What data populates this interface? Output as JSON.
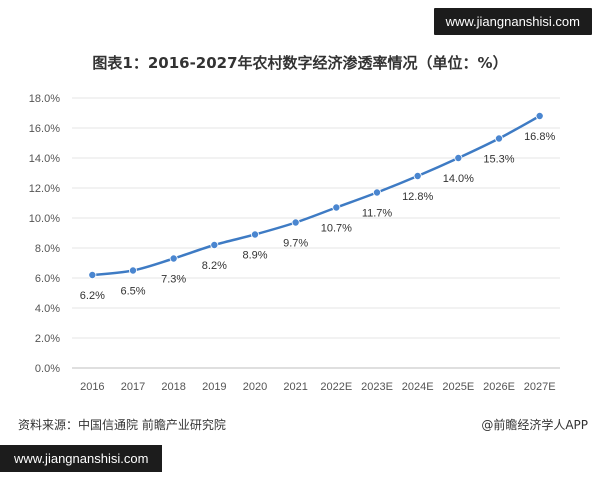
{
  "watermark_url_top": "www.jiangnanshisi.com",
  "watermark_url_bottom": "www.jiangnanshisi.com",
  "source_text": "资料来源：中国信通院 前瞻产业研究院",
  "credit_text": "@前瞻经济学人APP",
  "colors": {
    "line": "#3e7bc4",
    "marker": "#4a86d0",
    "grid": "#e6e6e6",
    "axis": "#bfbfbf"
  },
  "chart_data": {
    "type": "line",
    "title": "图表1：2016-2027年农村数字经济渗透率情况（单位：%）",
    "categories": [
      "2016",
      "2017",
      "2018",
      "2019",
      "2020",
      "2021",
      "2022E",
      "2023E",
      "2024E",
      "2025E",
      "2026E",
      "2027E"
    ],
    "values": [
      6.2,
      6.5,
      7.3,
      8.2,
      8.9,
      9.7,
      10.7,
      11.7,
      12.8,
      14.0,
      15.3,
      16.8
    ],
    "data_labels": [
      "6.2%",
      "6.5%",
      "7.3%",
      "8.2%",
      "8.9%",
      "9.7%",
      "10.7%",
      "11.7%",
      "12.8%",
      "14.0%",
      "15.3%",
      "16.8%"
    ],
    "yticks": [
      0,
      2,
      4,
      6,
      8,
      10,
      12,
      14,
      16,
      18
    ],
    "ytick_labels": [
      "0.0%",
      "2.0%",
      "4.0%",
      "6.0%",
      "8.0%",
      "10.0%",
      "12.0%",
      "14.0%",
      "16.0%",
      "18.0%"
    ],
    "ylim": [
      0,
      18
    ],
    "grid": true,
    "legend": "none"
  }
}
